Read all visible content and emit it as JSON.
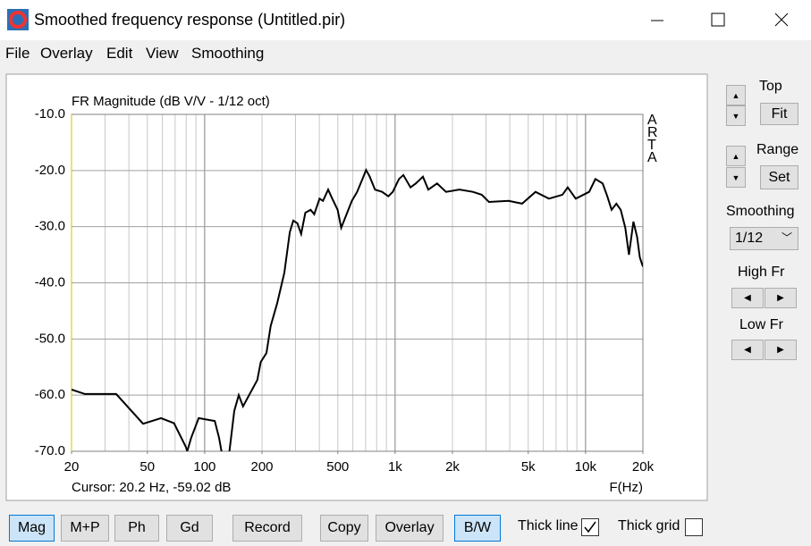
{
  "window": {
    "title": "Smoothed frequency response (Untitled.pir)"
  },
  "menu": [
    "File",
    "Overlay",
    "Edit",
    "View",
    "Smoothing"
  ],
  "chart_data": {
    "type": "line",
    "title": "FR Magnitude (dB V/V - 1/12 oct)",
    "xlabel": "F(Hz)",
    "cursor": "Cursor: 20.2 Hz, -59.02 dB",
    "brand": "ARTA",
    "xscale": "log",
    "color": "#000000",
    "grid": true,
    "xlim": [
      20,
      20000
    ],
    "ylim": [
      -70,
      -10
    ],
    "xticks": [
      20,
      50,
      100,
      200,
      500,
      {
        "value": 1000,
        "label": "1k"
      },
      {
        "value": 2000,
        "label": "2k"
      },
      {
        "value": 5000,
        "label": "5k"
      },
      {
        "value": 10000,
        "label": "10k"
      },
      {
        "value": 20000,
        "label": "20k"
      }
    ],
    "xgrid": [
      30,
      40,
      50,
      60,
      70,
      80,
      90,
      100,
      200,
      300,
      400,
      500,
      600,
      700,
      800,
      900,
      1000,
      2000,
      3000,
      4000,
      5000,
      6000,
      7000,
      8000,
      9000,
      10000
    ],
    "yticks": [
      {
        "value": -10,
        "label": "-10.0"
      },
      {
        "value": -20,
        "label": "-20.0"
      },
      {
        "value": -30,
        "label": "-30.0"
      },
      {
        "value": -40,
        "label": "-40.0"
      },
      {
        "value": -50,
        "label": "-50.0"
      },
      {
        "value": -60,
        "label": "-60.0"
      },
      {
        "value": -70,
        "label": "-70.0"
      }
    ],
    "x": [
      20,
      23.5,
      34.3,
      47.5,
      59,
      69,
      79.6,
      81,
      85,
      93,
      113,
      119,
      125,
      135,
      143,
      151,
      159,
      173,
      189,
      197,
      211,
      222,
      240,
      262,
      280,
      292,
      307,
      321,
      338,
      360,
      376,
      401,
      418,
      445,
      468,
      499,
      521,
      556,
      593,
      632,
      674,
      704,
      736,
      784,
      854,
      921,
      973,
      1048,
      1105,
      1204,
      1284,
      1400,
      1493,
      1661,
      1850,
      2175,
      2558,
      2849,
      3108,
      3945,
      4641,
      5460,
      6424,
      7557,
      8056,
      8880,
      10440,
      11270,
      12300,
      13000,
      13700,
      14500,
      15300,
      16160,
      16900,
      17830,
      18640,
      19270,
      20000
    ],
    "values": [
      -59.0,
      -59.8,
      -59.8,
      -65.1,
      -64.1,
      -65.0,
      -69.2,
      -70.0,
      -67.6,
      -64.1,
      -64.6,
      -67.6,
      -71.6,
      -70.0,
      -62.8,
      -60.0,
      -62.0,
      -59.7,
      -57.3,
      -54.1,
      -52.5,
      -47.7,
      -43.7,
      -38.2,
      -31.0,
      -28.9,
      -29.4,
      -31.3,
      -27.5,
      -27.0,
      -27.8,
      -25.0,
      -25.4,
      -23.4,
      -25.0,
      -27.0,
      -30.2,
      -27.8,
      -25.4,
      -23.8,
      -21.5,
      -19.9,
      -21.1,
      -23.4,
      -23.8,
      -24.6,
      -23.8,
      -21.5,
      -20.8,
      -23.0,
      -22.3,
      -21.1,
      -23.4,
      -22.3,
      -23.8,
      -23.4,
      -23.8,
      -24.3,
      -25.6,
      -25.4,
      -25.9,
      -23.8,
      -25.0,
      -24.3,
      -23.0,
      -25.0,
      -23.8,
      -21.5,
      -22.3,
      -24.6,
      -27.0,
      -25.9,
      -27.0,
      -30.2,
      -35.0,
      -29.1,
      -31.8,
      -35.5,
      -37.1
    ]
  },
  "side_panel": {
    "top_label": "Top",
    "fit": "Fit",
    "range_label": "Range",
    "set": "Set",
    "smoothing_label": "Smoothing",
    "smoothing_value": "1/12",
    "high_fr": "High Fr",
    "low_fr": "Low Fr"
  },
  "toolbar": {
    "buttons": [
      {
        "label": "Mag",
        "pressed": true
      },
      {
        "label": "M+P",
        "pressed": false
      },
      {
        "label": "Ph",
        "pressed": false
      },
      {
        "label": "Gd",
        "pressed": false
      },
      {
        "label": "Record",
        "pressed": false
      },
      {
        "label": "Copy",
        "pressed": false
      },
      {
        "label": "Overlay",
        "pressed": false
      },
      {
        "label": "B/W",
        "pressed": true
      }
    ],
    "checkboxes": [
      {
        "label": "Thick line",
        "checked": true
      },
      {
        "label": "Thick grid",
        "checked": false
      }
    ]
  }
}
